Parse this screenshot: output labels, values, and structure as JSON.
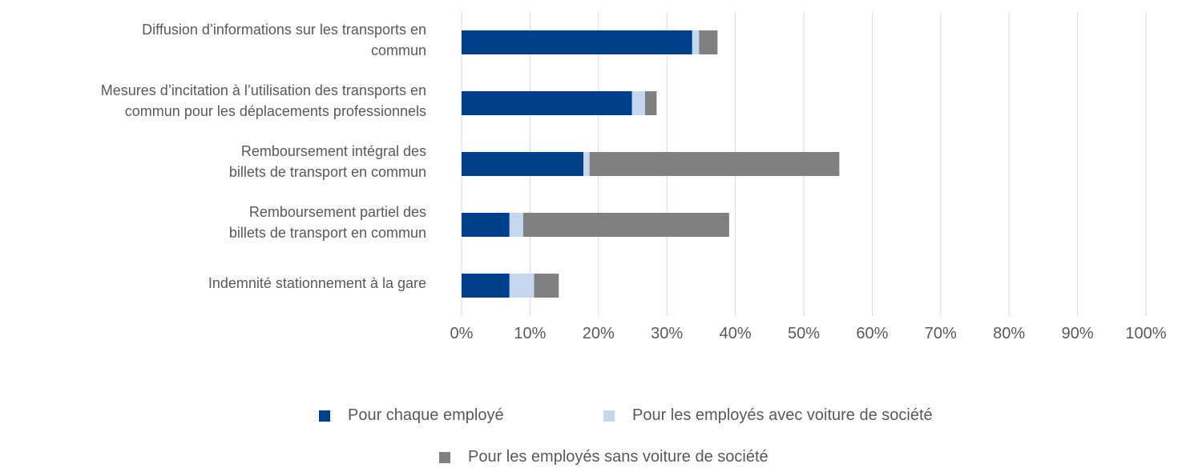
{
  "chart_data": {
    "type": "stacked-barh",
    "categories": [
      "Diffusion d’informations sur les transports en\ncommun",
      "Mesures d’incitation à l’utilisation des transports en\ncommun pour les déplacements professionnels",
      "Remboursement intégral des\nbillets de transport en commun",
      "Remboursement partiel des\nbillets de transport en commun",
      "Indemnité stationnement à la gare"
    ],
    "series": [
      {
        "name": "Pour chaque employé",
        "color": "#003f8a",
        "values": [
          33.7,
          24.9,
          17.8,
          7.0,
          7.0
        ]
      },
      {
        "name": "Pour les employés avec voiture de société",
        "color": "#c5d6ef",
        "values": [
          1.0,
          1.9,
          0.9,
          2.0,
          3.6
        ]
      },
      {
        "name": "Pour les employés sans voiture de société",
        "color": "#808080",
        "values": [
          2.7,
          1.7,
          36.5,
          30.1,
          3.6
        ]
      }
    ],
    "xlim": [
      0,
      100
    ],
    "xticks": [
      {
        "value": 0,
        "label": "0%"
      },
      {
        "value": 10,
        "label": "10%"
      },
      {
        "value": 20,
        "label": "20%"
      },
      {
        "value": 30,
        "label": "30%"
      },
      {
        "value": 40,
        "label": "40%"
      },
      {
        "value": 50,
        "label": "50%"
      },
      {
        "value": 60,
        "label": "60%"
      },
      {
        "value": 70,
        "label": "70%"
      },
      {
        "value": 80,
        "label": "80%"
      },
      {
        "value": 90,
        "label": "90%"
      },
      {
        "value": 100,
        "label": "100%"
      }
    ],
    "grid": true,
    "legend": "bottom"
  }
}
